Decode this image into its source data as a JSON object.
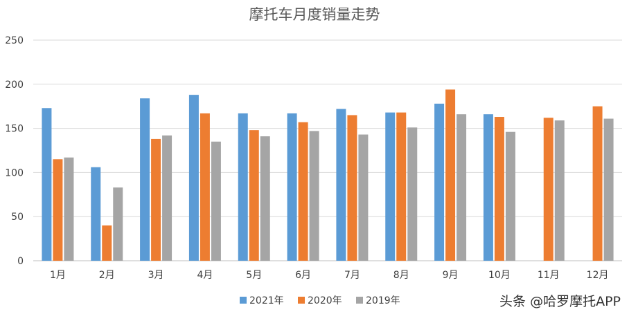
{
  "chart_data": {
    "type": "bar",
    "title": "摩托车月度销量走势",
    "categories": [
      "1月",
      "2月",
      "3月",
      "4月",
      "5月",
      "6月",
      "7月",
      "8月",
      "9月",
      "10月",
      "11月",
      "12月"
    ],
    "series": [
      {
        "name": "2021年",
        "color": "#5b9bd5",
        "values": [
          173,
          106,
          184,
          188,
          167,
          167,
          172,
          168,
          178,
          166,
          null,
          null
        ]
      },
      {
        "name": "2020年",
        "color": "#ed7d31",
        "values": [
          115,
          40,
          138,
          167,
          148,
          157,
          165,
          168,
          194,
          163,
          162,
          175
        ]
      },
      {
        "name": "2019年",
        "color": "#a5a5a5",
        "values": [
          117,
          83,
          142,
          135,
          141,
          147,
          143,
          151,
          166,
          146,
          159,
          161
        ]
      }
    ],
    "yticks": [
      0,
      50,
      100,
      150,
      200,
      250
    ],
    "ylim": [
      0,
      250
    ],
    "grid": true,
    "legend": "bottom"
  },
  "watermark": "头条 @哈罗摩托APP"
}
